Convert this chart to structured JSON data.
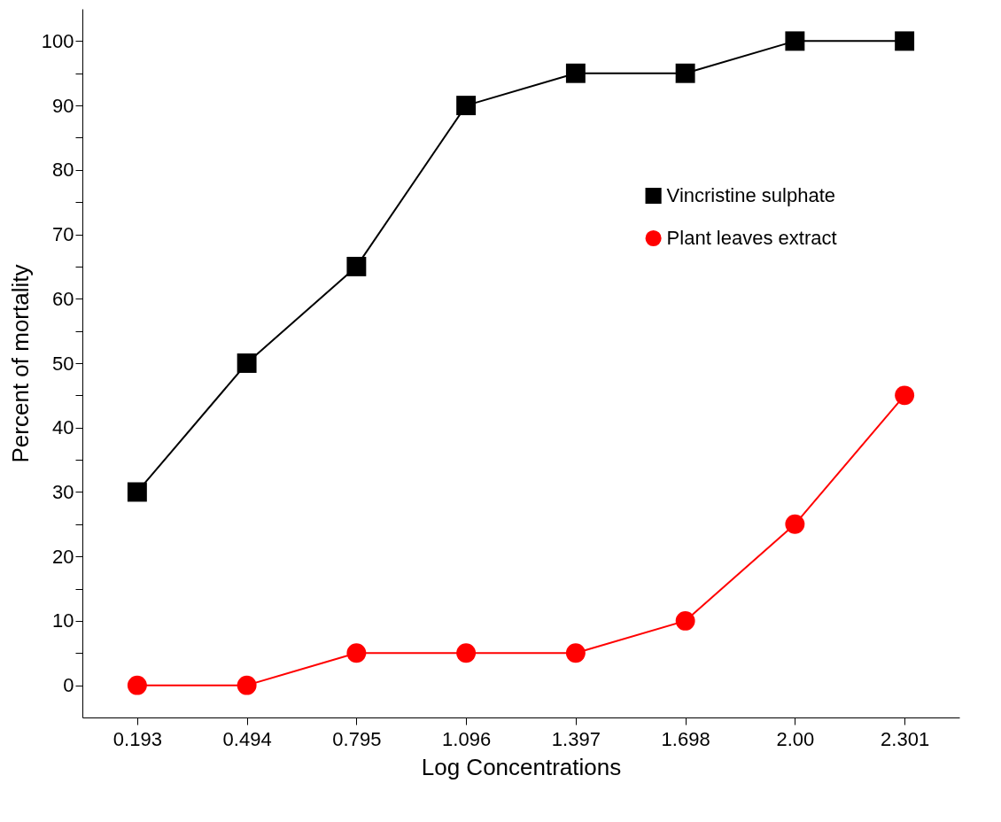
{
  "chart_data": {
    "type": "line",
    "xlabel": "Log Concentrations",
    "ylabel": "Percent of mortality",
    "categories": [
      "0.193",
      "0.494",
      "0.795",
      "1.096",
      "1.397",
      "1.698",
      "2.00",
      "2.301"
    ],
    "series": [
      {
        "name": "Vincristine sulphate",
        "color": "#000000",
        "marker": "square",
        "values": [
          30,
          50,
          65,
          90,
          95,
          95,
          100,
          100
        ]
      },
      {
        "name": "Plant leaves extract",
        "color": "#ff0000",
        "marker": "circle",
        "values": [
          0,
          0,
          5,
          5,
          5,
          10,
          25,
          45
        ]
      }
    ],
    "ylim": [
      -5,
      105
    ],
    "yticks": [
      0,
      {
        "value": 5,
        "label": null
      },
      10,
      {
        "value": 15,
        "label": null
      },
      20,
      {
        "value": 25,
        "label": null
      },
      30,
      {
        "value": 35,
        "label": null
      },
      40,
      {
        "value": 45,
        "label": null
      },
      50,
      {
        "value": 55,
        "label": null
      },
      60,
      {
        "value": 65,
        "label": null
      },
      70,
      {
        "value": 75,
        "label": null
      },
      80,
      {
        "value": 85,
        "label": null
      },
      90,
      {
        "value": 95,
        "label": null
      },
      100
    ],
    "grid": false,
    "legend": "right",
    "line_style": "solid"
  }
}
